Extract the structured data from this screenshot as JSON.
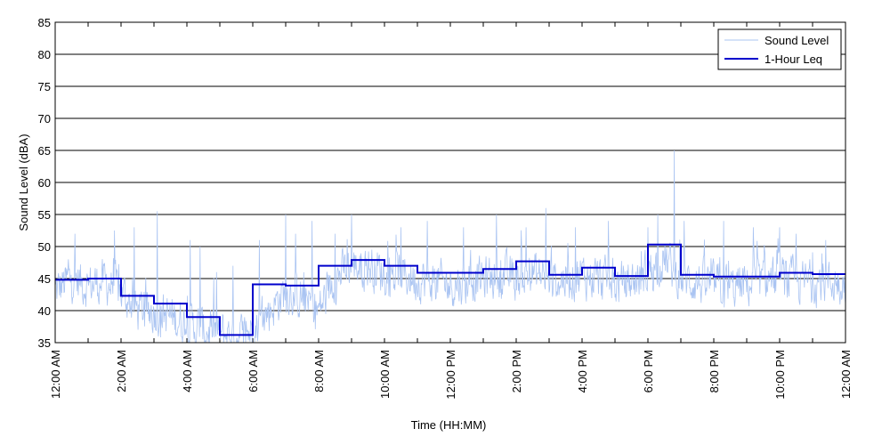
{
  "chart_data": {
    "type": "line",
    "xlabel": "Time (HH:MM)",
    "ylabel": "Sound Level (dBA)",
    "ylim": [
      35,
      85
    ],
    "xlim_hours": [
      0,
      24
    ],
    "yticks": [
      35,
      40,
      45,
      50,
      55,
      60,
      65,
      70,
      75,
      80,
      85
    ],
    "xtick_labels": [
      "12:00 AM",
      "2:00 AM",
      "4:00 AM",
      "6:00 AM",
      "8:00 AM",
      "10:00 AM",
      "12:00 PM",
      "2:00 PM",
      "4:00 PM",
      "6:00 PM",
      "8:00 PM",
      "10:00 PM",
      "12:00 AM"
    ],
    "grid": "horizontal",
    "legend_position": "top-right",
    "colors": {
      "sound_level": "#aac4f2",
      "leq": "#0000cc"
    },
    "series": [
      {
        "name": "Sound Level",
        "style": "thin-light-blue",
        "anchor_hours": [
          0,
          0.5,
          1,
          1.5,
          2,
          2.5,
          3,
          3.5,
          4,
          4.5,
          5,
          5.5,
          6,
          6.5,
          7,
          7.5,
          8,
          8.5,
          9,
          9.5,
          10,
          10.5,
          11,
          11.5,
          12,
          12.5,
          13,
          13.5,
          14,
          14.5,
          15,
          15.5,
          16,
          16.5,
          17,
          17.5,
          18,
          18.5,
          19,
          19.5,
          20,
          20.5,
          21,
          21.5,
          22,
          22.5,
          23,
          23.5,
          24
        ],
        "anchor_levels": [
          43,
          45,
          44,
          44.5,
          43,
          40,
          40,
          39,
          38,
          37,
          36.5,
          36,
          37,
          40,
          43,
          42,
          40,
          45,
          47,
          47,
          46,
          45.5,
          45,
          44.5,
          44,
          44.5,
          45,
          45.5,
          45,
          46,
          44.5,
          45,
          45.5,
          45,
          44,
          44.5,
          46,
          48,
          45,
          44.5,
          44,
          43.5,
          44,
          44.5,
          45,
          44.5,
          44.5,
          44.5,
          44.5
        ],
        "spikes": [
          [
            0.4,
            48
          ],
          [
            0.6,
            52
          ],
          [
            1.8,
            52.5
          ],
          [
            2.4,
            53
          ],
          [
            3.1,
            55.5
          ],
          [
            4.1,
            51
          ],
          [
            4.4,
            50
          ],
          [
            4.9,
            46
          ],
          [
            5.4,
            47
          ],
          [
            6.2,
            51
          ],
          [
            7.0,
            55
          ],
          [
            7.3,
            52
          ],
          [
            7.8,
            54
          ],
          [
            8.5,
            52
          ],
          [
            9.0,
            55
          ],
          [
            10.5,
            53
          ],
          [
            11.3,
            54
          ],
          [
            12.4,
            53
          ],
          [
            13.4,
            55
          ],
          [
            14.3,
            53
          ],
          [
            14.9,
            56
          ],
          [
            15.8,
            53
          ],
          [
            16.8,
            54
          ],
          [
            18.0,
            53
          ],
          [
            18.3,
            55
          ],
          [
            18.8,
            65
          ],
          [
            19.1,
            54
          ],
          [
            20.3,
            54
          ],
          [
            21.2,
            53
          ],
          [
            22.0,
            53
          ],
          [
            22.5,
            52
          ],
          [
            23.4,
            51
          ]
        ]
      },
      {
        "name": "1-Hour Leq",
        "style": "step",
        "hourly_values": [
          44.8,
          45.0,
          42.3,
          41.1,
          39.0,
          36.2,
          44.1,
          43.9,
          47.0,
          47.9,
          47.0,
          45.9,
          45.9,
          46.5,
          47.7,
          45.6,
          46.7,
          45.4,
          50.3,
          45.6,
          45.3,
          45.3,
          45.9,
          45.7
        ]
      }
    ]
  }
}
